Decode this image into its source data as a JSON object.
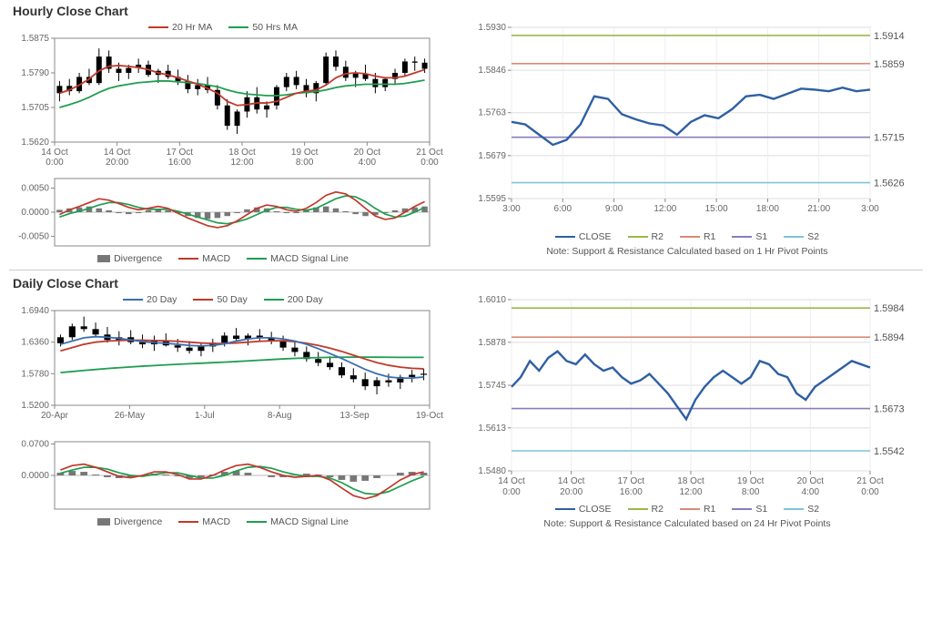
{
  "hourly": {
    "title": "Hourly Close Chart",
    "price": {
      "ylim": [
        1.562,
        1.5875
      ],
      "yticks": [
        1.562,
        1.5705,
        1.579,
        1.5875
      ],
      "xticks": [
        "14 Oct 0:00",
        "14 Oct 20:00",
        "17 Oct 16:00",
        "18 Oct 12:00",
        "19 Oct 8:00",
        "20 Oct 4:00",
        "21 Oct 0:00"
      ],
      "candles": [
        [
          1.574,
          1.577,
          1.572,
          1.5758
        ],
        [
          1.5758,
          1.5775,
          1.5735,
          1.5745
        ],
        [
          1.5745,
          1.579,
          1.574,
          1.578
        ],
        [
          1.578,
          1.58,
          1.576,
          1.5765
        ],
        [
          1.5765,
          1.585,
          1.576,
          1.583
        ],
        [
          1.583,
          1.5845,
          1.579,
          1.58
        ],
        [
          1.58,
          1.5815,
          1.577,
          1.579
        ],
        [
          1.579,
          1.581,
          1.5775,
          1.5802
        ],
        [
          1.5802,
          1.5825,
          1.579,
          1.581
        ],
        [
          1.581,
          1.582,
          1.578,
          1.5785
        ],
        [
          1.5785,
          1.58,
          1.5765,
          1.5795
        ],
        [
          1.5795,
          1.581,
          1.5775,
          1.578
        ],
        [
          1.578,
          1.5798,
          1.576,
          1.577
        ],
        [
          1.577,
          1.5785,
          1.574,
          1.575
        ],
        [
          1.575,
          1.5775,
          1.5735,
          1.576
        ],
        [
          1.576,
          1.578,
          1.574,
          1.5748
        ],
        [
          1.5748,
          1.576,
          1.57,
          1.571
        ],
        [
          1.571,
          1.5725,
          1.565,
          1.566
        ],
        [
          1.566,
          1.57,
          1.564,
          1.5695
        ],
        [
          1.5695,
          1.5745,
          1.568,
          1.573
        ],
        [
          1.573,
          1.5755,
          1.569,
          1.57
        ],
        [
          1.57,
          1.572,
          1.568,
          1.571
        ],
        [
          1.571,
          1.576,
          1.57,
          1.5755
        ],
        [
          1.5755,
          1.579,
          1.5745,
          1.578
        ],
        [
          1.578,
          1.5795,
          1.575,
          1.576
        ],
        [
          1.576,
          1.5775,
          1.573,
          1.574
        ],
        [
          1.574,
          1.577,
          1.572,
          1.5765
        ],
        [
          1.5765,
          1.584,
          1.576,
          1.583
        ],
        [
          1.583,
          1.5845,
          1.5795,
          1.5805
        ],
        [
          1.5805,
          1.582,
          1.577,
          1.5778
        ],
        [
          1.5778,
          1.5795,
          1.5755,
          1.5788
        ],
        [
          1.5788,
          1.581,
          1.577,
          1.5775
        ],
        [
          1.5775,
          1.579,
          1.574,
          1.5755
        ],
        [
          1.5755,
          1.578,
          1.5745,
          1.5775
        ],
        [
          1.5775,
          1.58,
          1.576,
          1.579
        ],
        [
          1.579,
          1.5825,
          1.578,
          1.5818
        ],
        [
          1.5818,
          1.583,
          1.5795,
          1.5815
        ],
        [
          1.5815,
          1.5825,
          1.579,
          1.58
        ]
      ],
      "ma20": [
        1.574,
        1.5748,
        1.576,
        1.5775,
        1.5795,
        1.5806,
        1.5808,
        1.5806,
        1.5803,
        1.5798,
        1.579,
        1.5785,
        1.5778,
        1.577,
        1.5762,
        1.5752,
        1.574,
        1.572,
        1.571,
        1.5712,
        1.5716,
        1.5716,
        1.572,
        1.573,
        1.574,
        1.5745,
        1.5748,
        1.576,
        1.5778,
        1.5788,
        1.579,
        1.5788,
        1.5782,
        1.5778,
        1.5778,
        1.5782,
        1.579,
        1.5798
      ],
      "ma50": [
        1.5705,
        1.5712,
        1.572,
        1.573,
        1.5742,
        1.5752,
        1.5758,
        1.5762,
        1.5766,
        1.5768,
        1.577,
        1.577,
        1.5768,
        1.5766,
        1.5764,
        1.576,
        1.5756,
        1.5748,
        1.5742,
        1.5738,
        1.5736,
        1.5734,
        1.5734,
        1.5736,
        1.574,
        1.5742,
        1.5744,
        1.5748,
        1.5754,
        1.5758,
        1.576,
        1.5762,
        1.5762,
        1.5762,
        1.5762,
        1.5764,
        1.5768,
        1.5772
      ],
      "ma20_color": "#c0392b",
      "ma50_color": "#1e9e50",
      "legend": [
        [
          "20 Hr MA",
          "#c0392b"
        ],
        [
          "50 Hrs MA",
          "#1e9e50"
        ]
      ]
    },
    "macd": {
      "ylim": [
        -0.007,
        0.007
      ],
      "yticks": [
        -0.005,
        0.0,
        0.005
      ],
      "hist": [
        0.0005,
        0.0008,
        0.001,
        0.0012,
        0.0008,
        0.0004,
        -0.0002,
        -0.0004,
        -0.0002,
        0.0004,
        0.0006,
        0.0004,
        -0.0002,
        -0.0008,
        -0.0012,
        -0.0014,
        -0.0012,
        -0.0008,
        -0.0002,
        0.0006,
        0.001,
        0.0008,
        0.0002,
        -0.0002,
        -0.0002,
        0.0004,
        0.001,
        0.0012,
        0.0008,
        0.0002,
        -0.0004,
        -0.0008,
        -0.0006,
        -0.0002,
        0.0004,
        0.0008,
        0.001,
        0.0012
      ],
      "macd": [
        -0.0005,
        0.0005,
        0.0012,
        0.002,
        0.0028,
        0.0025,
        0.0018,
        0.001,
        0.0005,
        0.0008,
        0.0012,
        0.0008,
        -0.0002,
        -0.0012,
        -0.002,
        -0.0028,
        -0.0032,
        -0.0028,
        -0.0018,
        -0.0005,
        0.0008,
        0.0015,
        0.0012,
        0.0005,
        0.0002,
        0.0008,
        0.002,
        0.0035,
        0.0042,
        0.0038,
        0.0025,
        0.0008,
        -0.0008,
        -0.0015,
        -0.0012,
        0.0,
        0.0012,
        0.0022
      ],
      "signal": [
        -0.001,
        -0.0003,
        0.0002,
        0.0008,
        0.0015,
        0.002,
        0.002,
        0.0016,
        0.001,
        0.0006,
        0.0006,
        0.0006,
        0.0002,
        -0.0004,
        -0.001,
        -0.0016,
        -0.0022,
        -0.0024,
        -0.002,
        -0.0014,
        -0.0005,
        0.0004,
        0.001,
        0.001,
        0.0006,
        0.0004,
        0.0008,
        0.0018,
        0.0028,
        0.0034,
        0.0032,
        0.0022,
        0.0008,
        -0.0004,
        -0.001,
        -0.0008,
        0.0,
        0.001
      ],
      "hist_color": "#777",
      "macd_color": "#c0392b",
      "signal_color": "#1e9e50",
      "legend": [
        [
          "Divergence",
          "#777",
          "box"
        ],
        [
          "MACD",
          "#c0392b",
          "line"
        ],
        [
          "MACD Signal Line",
          "#1e9e50",
          "line"
        ]
      ]
    },
    "sr": {
      "ylim": [
        1.5595,
        1.593
      ],
      "yticks": [
        1.5595,
        1.5679,
        1.5763,
        1.5846,
        1.593
      ],
      "xticks": [
        "3:00",
        "6:00",
        "9:00",
        "12:00",
        "15:00",
        "18:00",
        "21:00",
        "3:00"
      ],
      "close": [
        1.5745,
        1.574,
        1.572,
        1.57,
        1.571,
        1.574,
        1.5795,
        1.579,
        1.576,
        1.575,
        1.5742,
        1.5738,
        1.572,
        1.5745,
        1.5758,
        1.5752,
        1.577,
        1.5795,
        1.5798,
        1.579,
        1.58,
        1.581,
        1.5808,
        1.5805,
        1.5812,
        1.5805,
        1.5808
      ],
      "close_color": "#2e5fa3",
      "levels": {
        "R2": 1.5914,
        "R1": 1.5859,
        "S1": 1.5715,
        "S2": 1.5626
      },
      "level_colors": {
        "R2": "#9bb84a",
        "R1": "#d98a74",
        "S1": "#8b7db8",
        "S2": "#7fc4d6"
      },
      "legend": [
        [
          "CLOSE",
          "#2e5fa3"
        ],
        [
          "R2",
          "#9bb84a"
        ],
        [
          "R1",
          "#d98a74"
        ],
        [
          "S1",
          "#8b7db8"
        ],
        [
          "S2",
          "#7fc4d6"
        ]
      ],
      "note": "Note: Support & Resistance Calculated based on 1 Hr Pivot Points"
    }
  },
  "daily": {
    "title": "Daily Close Chart",
    "price": {
      "ylim": [
        1.52,
        1.694
      ],
      "yticks": [
        1.52,
        1.578,
        1.636,
        1.694
      ],
      "xticks": [
        "20-Apr",
        "26-May",
        "1-Jul",
        "8-Aug",
        "13-Sep",
        "19-Oct"
      ],
      "candles": [
        [
          1.634,
          1.65,
          1.628,
          1.645
        ],
        [
          1.645,
          1.67,
          1.64,
          1.665
        ],
        [
          1.665,
          1.683,
          1.655,
          1.66
        ],
        [
          1.66,
          1.672,
          1.645,
          1.65
        ],
        [
          1.65,
          1.664,
          1.635,
          1.64
        ],
        [
          1.64,
          1.656,
          1.63,
          1.645
        ],
        [
          1.645,
          1.658,
          1.632,
          1.636
        ],
        [
          1.636,
          1.65,
          1.625,
          1.632
        ],
        [
          1.632,
          1.648,
          1.62,
          1.638
        ],
        [
          1.638,
          1.652,
          1.628,
          1.63
        ],
        [
          1.63,
          1.642,
          1.618,
          1.626
        ],
        [
          1.626,
          1.638,
          1.615,
          1.62
        ],
        [
          1.62,
          1.635,
          1.61,
          1.628
        ],
        [
          1.628,
          1.642,
          1.618,
          1.635
        ],
        [
          1.635,
          1.654,
          1.628,
          1.648
        ],
        [
          1.648,
          1.662,
          1.638,
          1.642
        ],
        [
          1.642,
          1.652,
          1.63,
          1.648
        ],
        [
          1.648,
          1.66,
          1.638,
          1.644
        ],
        [
          1.644,
          1.655,
          1.632,
          1.638
        ],
        [
          1.638,
          1.648,
          1.62,
          1.626
        ],
        [
          1.626,
          1.638,
          1.61,
          1.618
        ],
        [
          1.618,
          1.628,
          1.6,
          1.605
        ],
        [
          1.605,
          1.618,
          1.592,
          1.598
        ],
        [
          1.598,
          1.61,
          1.585,
          1.59
        ],
        [
          1.59,
          1.599,
          1.57,
          1.575
        ],
        [
          1.575,
          1.588,
          1.562,
          1.568
        ],
        [
          1.568,
          1.58,
          1.548,
          1.555
        ],
        [
          1.555,
          1.572,
          1.54,
          1.566
        ],
        [
          1.566,
          1.578,
          1.554,
          1.562
        ],
        [
          1.562,
          1.576,
          1.55,
          1.572
        ],
        [
          1.572,
          1.585,
          1.562,
          1.576
        ],
        [
          1.576,
          1.587,
          1.566,
          1.578
        ]
      ],
      "ma20": [
        1.632,
        1.638,
        1.644,
        1.646,
        1.645,
        1.643,
        1.64,
        1.637,
        1.635,
        1.634,
        1.632,
        1.63,
        1.629,
        1.63,
        1.633,
        1.638,
        1.642,
        1.644,
        1.644,
        1.642,
        1.638,
        1.632,
        1.624,
        1.615,
        1.606,
        1.596,
        1.586,
        1.578,
        1.572,
        1.57,
        1.57,
        1.572
      ],
      "ma50": [
        1.62,
        1.626,
        1.632,
        1.636,
        1.638,
        1.639,
        1.6395,
        1.6395,
        1.639,
        1.6385,
        1.6375,
        1.636,
        1.6345,
        1.6335,
        1.6335,
        1.6345,
        1.636,
        1.6375,
        1.6385,
        1.6385,
        1.637,
        1.634,
        1.63,
        1.625,
        1.619,
        1.612,
        1.605,
        1.5985,
        1.5935,
        1.59,
        1.588,
        1.587
      ],
      "ma200": [
        1.58,
        1.582,
        1.584,
        1.5858,
        1.5875,
        1.589,
        1.5905,
        1.5918,
        1.593,
        1.5942,
        1.5953,
        1.5963,
        1.5973,
        1.5983,
        1.5993,
        1.6004,
        1.6016,
        1.6028,
        1.604,
        1.6052,
        1.6062,
        1.607,
        1.6076,
        1.608,
        1.6083,
        1.6085,
        1.6085,
        1.6084,
        1.6082,
        1.6081,
        1.608,
        1.608
      ],
      "ma20_color": "#3a6fb0",
      "ma50_color": "#c0392b",
      "ma200_color": "#1e9e50",
      "legend": [
        [
          "20 Day",
          "#3a6fb0"
        ],
        [
          "50 Day",
          "#c0392b"
        ],
        [
          "200 Day",
          "#1e9e50"
        ]
      ]
    },
    "macd": {
      "ylim": [
        -0.075,
        0.075
      ],
      "yticks": [
        0.0,
        0.07
      ],
      "hist": [
        0.006,
        0.01,
        0.008,
        0.002,
        -0.004,
        -0.006,
        -0.004,
        0.0,
        0.004,
        0.002,
        -0.002,
        -0.006,
        -0.004,
        0.002,
        0.008,
        0.01,
        0.006,
        0.0,
        -0.004,
        -0.004,
        0.0,
        0.004,
        0.002,
        -0.004,
        -0.01,
        -0.014,
        -0.012,
        -0.006,
        0.0,
        0.006,
        0.008,
        0.006
      ],
      "macd": [
        0.012,
        0.022,
        0.025,
        0.018,
        0.008,
        -0.002,
        -0.005,
        0.0,
        0.008,
        0.008,
        0.002,
        -0.008,
        -0.008,
        0.0,
        0.012,
        0.022,
        0.025,
        0.018,
        0.008,
        0.0,
        -0.004,
        -0.002,
        0.0,
        -0.01,
        -0.028,
        -0.045,
        -0.052,
        -0.045,
        -0.028,
        -0.01,
        0.002,
        0.008
      ],
      "signal": [
        0.005,
        0.012,
        0.018,
        0.018,
        0.014,
        0.006,
        0.0,
        -0.002,
        0.002,
        0.006,
        0.006,
        0.0,
        -0.006,
        -0.006,
        0.0,
        0.01,
        0.018,
        0.02,
        0.016,
        0.008,
        0.002,
        -0.002,
        -0.002,
        -0.006,
        -0.016,
        -0.03,
        -0.04,
        -0.042,
        -0.036,
        -0.024,
        -0.012,
        -0.002
      ],
      "hist_color": "#777",
      "macd_color": "#c0392b",
      "signal_color": "#1e9e50",
      "legend": [
        [
          "Divergence",
          "#777",
          "box"
        ],
        [
          "MACD",
          "#c0392b",
          "line"
        ],
        [
          "MACD Signal Line",
          "#1e9e50",
          "line"
        ]
      ]
    },
    "sr": {
      "ylim": [
        1.548,
        1.601
      ],
      "yticks": [
        1.548,
        1.5613,
        1.5745,
        1.5878,
        1.601
      ],
      "xticks": [
        "14 Oct 0:00",
        "14 Oct 20:00",
        "17 Oct 16:00",
        "18 Oct 12:00",
        "19 Oct 8:00",
        "20 Oct 4:00",
        "21 Oct 0:00"
      ],
      "close": [
        1.574,
        1.577,
        1.582,
        1.579,
        1.583,
        1.585,
        1.582,
        1.581,
        1.584,
        1.581,
        1.579,
        1.58,
        1.577,
        1.575,
        1.576,
        1.578,
        1.575,
        1.572,
        1.568,
        1.564,
        1.57,
        1.574,
        1.577,
        1.579,
        1.577,
        1.575,
        1.577,
        1.582,
        1.581,
        1.578,
        1.577,
        1.572,
        1.57,
        1.574,
        1.576,
        1.578,
        1.58,
        1.582,
        1.581,
        1.58
      ],
      "close_color": "#2e5fa3",
      "levels": {
        "R2": 1.5984,
        "R1": 1.5894,
        "S1": 1.5673,
        "S2": 1.5542
      },
      "level_colors": {
        "R2": "#9bb84a",
        "R1": "#d98a74",
        "S1": "#8b7db8",
        "S2": "#7fc4d6"
      },
      "legend": [
        [
          "CLOSE",
          "#2e5fa3"
        ],
        [
          "R2",
          "#9bb84a"
        ],
        [
          "R1",
          "#d98a74"
        ],
        [
          "S1",
          "#8b7db8"
        ],
        [
          "S2",
          "#7fc4d6"
        ]
      ],
      "note": "Note: Support & Resistance Calculated based on 24 Hr Pivot Points"
    }
  }
}
